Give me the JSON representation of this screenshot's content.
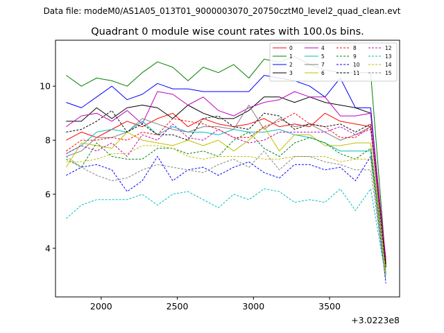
{
  "file_label": "Data file: modeM0/AS1A05_013T01_9000003070_20750cztM0_level2_quad_clean.evt",
  "chart_data": {
    "type": "line",
    "title": "Quadrant 0 module wise count rates with 100.0s bins.",
    "xlabel": "",
    "ylabel": "",
    "x_offset_label": "+3.0223e8",
    "xlim": [
      1700,
      3960
    ],
    "ylim": [
      2.2,
      11.7
    ],
    "xticks": [
      2000,
      2500,
      3000,
      3500
    ],
    "yticks": [
      4,
      6,
      8,
      10
    ],
    "legend_position": "top-right",
    "x": [
      1770,
      1870,
      1970,
      2070,
      2170,
      2270,
      2370,
      2470,
      2570,
      2670,
      2770,
      2870,
      2970,
      3070,
      3170,
      3270,
      3370,
      3470,
      3570,
      3670,
      3770,
      3870
    ],
    "series": [
      {
        "name": "0",
        "color": "#ff0000",
        "dash": "solid",
        "values": [
          8.0,
          8.3,
          8.1,
          8.4,
          8.7,
          8.5,
          8.8,
          9.0,
          8.5,
          8.8,
          8.6,
          8.5,
          8.6,
          8.8,
          8.5,
          8.6,
          8.5,
          9.0,
          8.7,
          8.6,
          8.5,
          3.5
        ]
      },
      {
        "name": "1",
        "color": "#008000",
        "dash": "solid",
        "values": [
          10.4,
          10.0,
          10.3,
          10.2,
          10.0,
          10.5,
          10.9,
          10.7,
          10.2,
          10.7,
          10.5,
          10.8,
          10.3,
          11.0,
          10.9,
          11.1,
          10.8,
          10.6,
          10.5,
          10.5,
          10.5,
          3.4
        ]
      },
      {
        "name": "2",
        "color": "#0000ff",
        "dash": "solid",
        "values": [
          9.4,
          9.2,
          9.6,
          10.0,
          9.5,
          9.7,
          10.1,
          9.9,
          9.9,
          9.8,
          9.8,
          9.8,
          9.8,
          10.4,
          10.3,
          10.2,
          10.0,
          9.6,
          10.3,
          9.2,
          9.2,
          3.3
        ]
      },
      {
        "name": "3",
        "color": "#000000",
        "dash": "solid",
        "values": [
          8.7,
          8.7,
          9.2,
          8.8,
          9.2,
          9.3,
          9.2,
          8.8,
          9.3,
          9.0,
          8.8,
          8.8,
          9.1,
          9.6,
          9.6,
          9.4,
          9.6,
          9.4,
          9.3,
          9.2,
          9.0,
          3.4
        ]
      },
      {
        "name": "4",
        "color": "#bf00bf",
        "dash": "solid",
        "values": [
          8.5,
          8.9,
          9.0,
          8.7,
          9.1,
          8.6,
          9.8,
          9.7,
          9.3,
          9.6,
          9.1,
          8.9,
          9.2,
          9.4,
          9.5,
          9.8,
          9.6,
          9.6,
          8.9,
          8.9,
          9.0,
          3.6
        ]
      },
      {
        "name": "5",
        "color": "#00bfbf",
        "dash": "solid",
        "values": [
          7.5,
          7.8,
          8.3,
          8.4,
          8.3,
          8.7,
          8.2,
          8.5,
          8.3,
          8.3,
          8.2,
          8.4,
          8.3,
          8.3,
          8.4,
          8.2,
          8.1,
          7.9,
          7.6,
          7.6,
          7.6,
          3.1
        ]
      },
      {
        "name": "7",
        "color": "#808080",
        "dash": "solid",
        "values": [
          7.4,
          7.6,
          8.1,
          8.1,
          8.3,
          8.8,
          8.6,
          8.4,
          8.3,
          8.5,
          8.5,
          8.4,
          9.3,
          8.4,
          8.8,
          8.5,
          8.6,
          8.3,
          8.0,
          8.2,
          8.5,
          3.0
        ]
      },
      {
        "name": "6",
        "color": "#bfbf00",
        "dash": "solid",
        "values": [
          7.0,
          7.9,
          7.8,
          7.7,
          8.3,
          8.0,
          7.9,
          7.8,
          8.0,
          7.8,
          8.0,
          7.6,
          8.0,
          8.5,
          7.6,
          8.2,
          8.2,
          7.8,
          7.8,
          7.9,
          7.9,
          3.2
        ]
      },
      {
        "name": "8",
        "color": "#ff0000",
        "dash": "dashed",
        "values": [
          7.6,
          8.0,
          8.0,
          8.1,
          8.0,
          8.3,
          8.2,
          8.8,
          8.7,
          8.6,
          8.4,
          8.1,
          8.1,
          8.5,
          8.7,
          9.0,
          8.6,
          8.5,
          8.1,
          8.1,
          8.5,
          3.6
        ]
      },
      {
        "name": "9",
        "color": "#008000",
        "dash": "dashed",
        "values": [
          7.3,
          7.0,
          7.9,
          7.4,
          7.3,
          7.3,
          7.7,
          7.7,
          7.5,
          7.6,
          7.4,
          8.0,
          8.3,
          7.7,
          7.4,
          7.9,
          8.1,
          7.9,
          7.5,
          7.3,
          7.7,
          3.0
        ]
      },
      {
        "name": "10",
        "color": "#0000ff",
        "dash": "dashed",
        "values": [
          6.7,
          7.0,
          7.1,
          6.9,
          6.1,
          6.5,
          7.4,
          6.5,
          6.9,
          7.0,
          6.7,
          7.0,
          7.2,
          6.8,
          6.6,
          7.1,
          7.1,
          6.9,
          7.0,
          6.5,
          7.4,
          2.7
        ]
      },
      {
        "name": "11",
        "color": "#000000",
        "dash": "dashed",
        "values": [
          8.3,
          8.4,
          8.7,
          9.1,
          8.3,
          8.6,
          8.2,
          8.2,
          8.0,
          8.8,
          8.9,
          8.5,
          8.4,
          9.0,
          8.9,
          8.4,
          8.6,
          8.5,
          8.6,
          8.3,
          8.6,
          3.3
        ]
      },
      {
        "name": "12",
        "color": "#bf00bf",
        "dash": "dashed",
        "values": [
          7.5,
          7.8,
          7.6,
          7.9,
          7.4,
          8.2,
          8.0,
          8.6,
          8.1,
          8.0,
          8.4,
          8.1,
          7.9,
          8.0,
          8.3,
          8.3,
          8.3,
          8.3,
          8.5,
          8.2,
          8.4,
          3.6
        ]
      },
      {
        "name": "13",
        "color": "#00bfbf",
        "dash": "dashed",
        "values": [
          5.1,
          5.6,
          5.8,
          5.8,
          5.8,
          6.0,
          5.6,
          6.0,
          6.1,
          5.8,
          5.5,
          6.0,
          5.8,
          6.2,
          6.1,
          5.7,
          5.8,
          5.7,
          6.2,
          5.4,
          6.2,
          2.9
        ]
      },
      {
        "name": "14",
        "color": "#bfbf00",
        "dash": "dashed",
        "values": [
          7.2,
          7.2,
          7.3,
          7.5,
          7.5,
          7.8,
          7.8,
          7.7,
          7.4,
          7.3,
          7.4,
          7.4,
          7.4,
          7.3,
          7.3,
          7.4,
          7.4,
          7.4,
          7.2,
          7.3,
          7.3,
          3.0
        ]
      },
      {
        "name": "15",
        "color": "#808080",
        "dash": "dashed",
        "values": [
          7.4,
          7.0,
          6.7,
          6.5,
          6.6,
          6.9,
          7.1,
          7.0,
          6.9,
          6.8,
          7.1,
          7.3,
          7.0,
          7.6,
          6.9,
          7.4,
          7.4,
          7.2,
          7.1,
          6.9,
          6.9,
          2.8
        ]
      }
    ],
    "legend_order": [
      "0",
      "1",
      "2",
      "3",
      "4",
      "5",
      "7",
      "6",
      "8",
      "9",
      "10",
      "11",
      "12",
      "13",
      "14",
      "15"
    ]
  }
}
